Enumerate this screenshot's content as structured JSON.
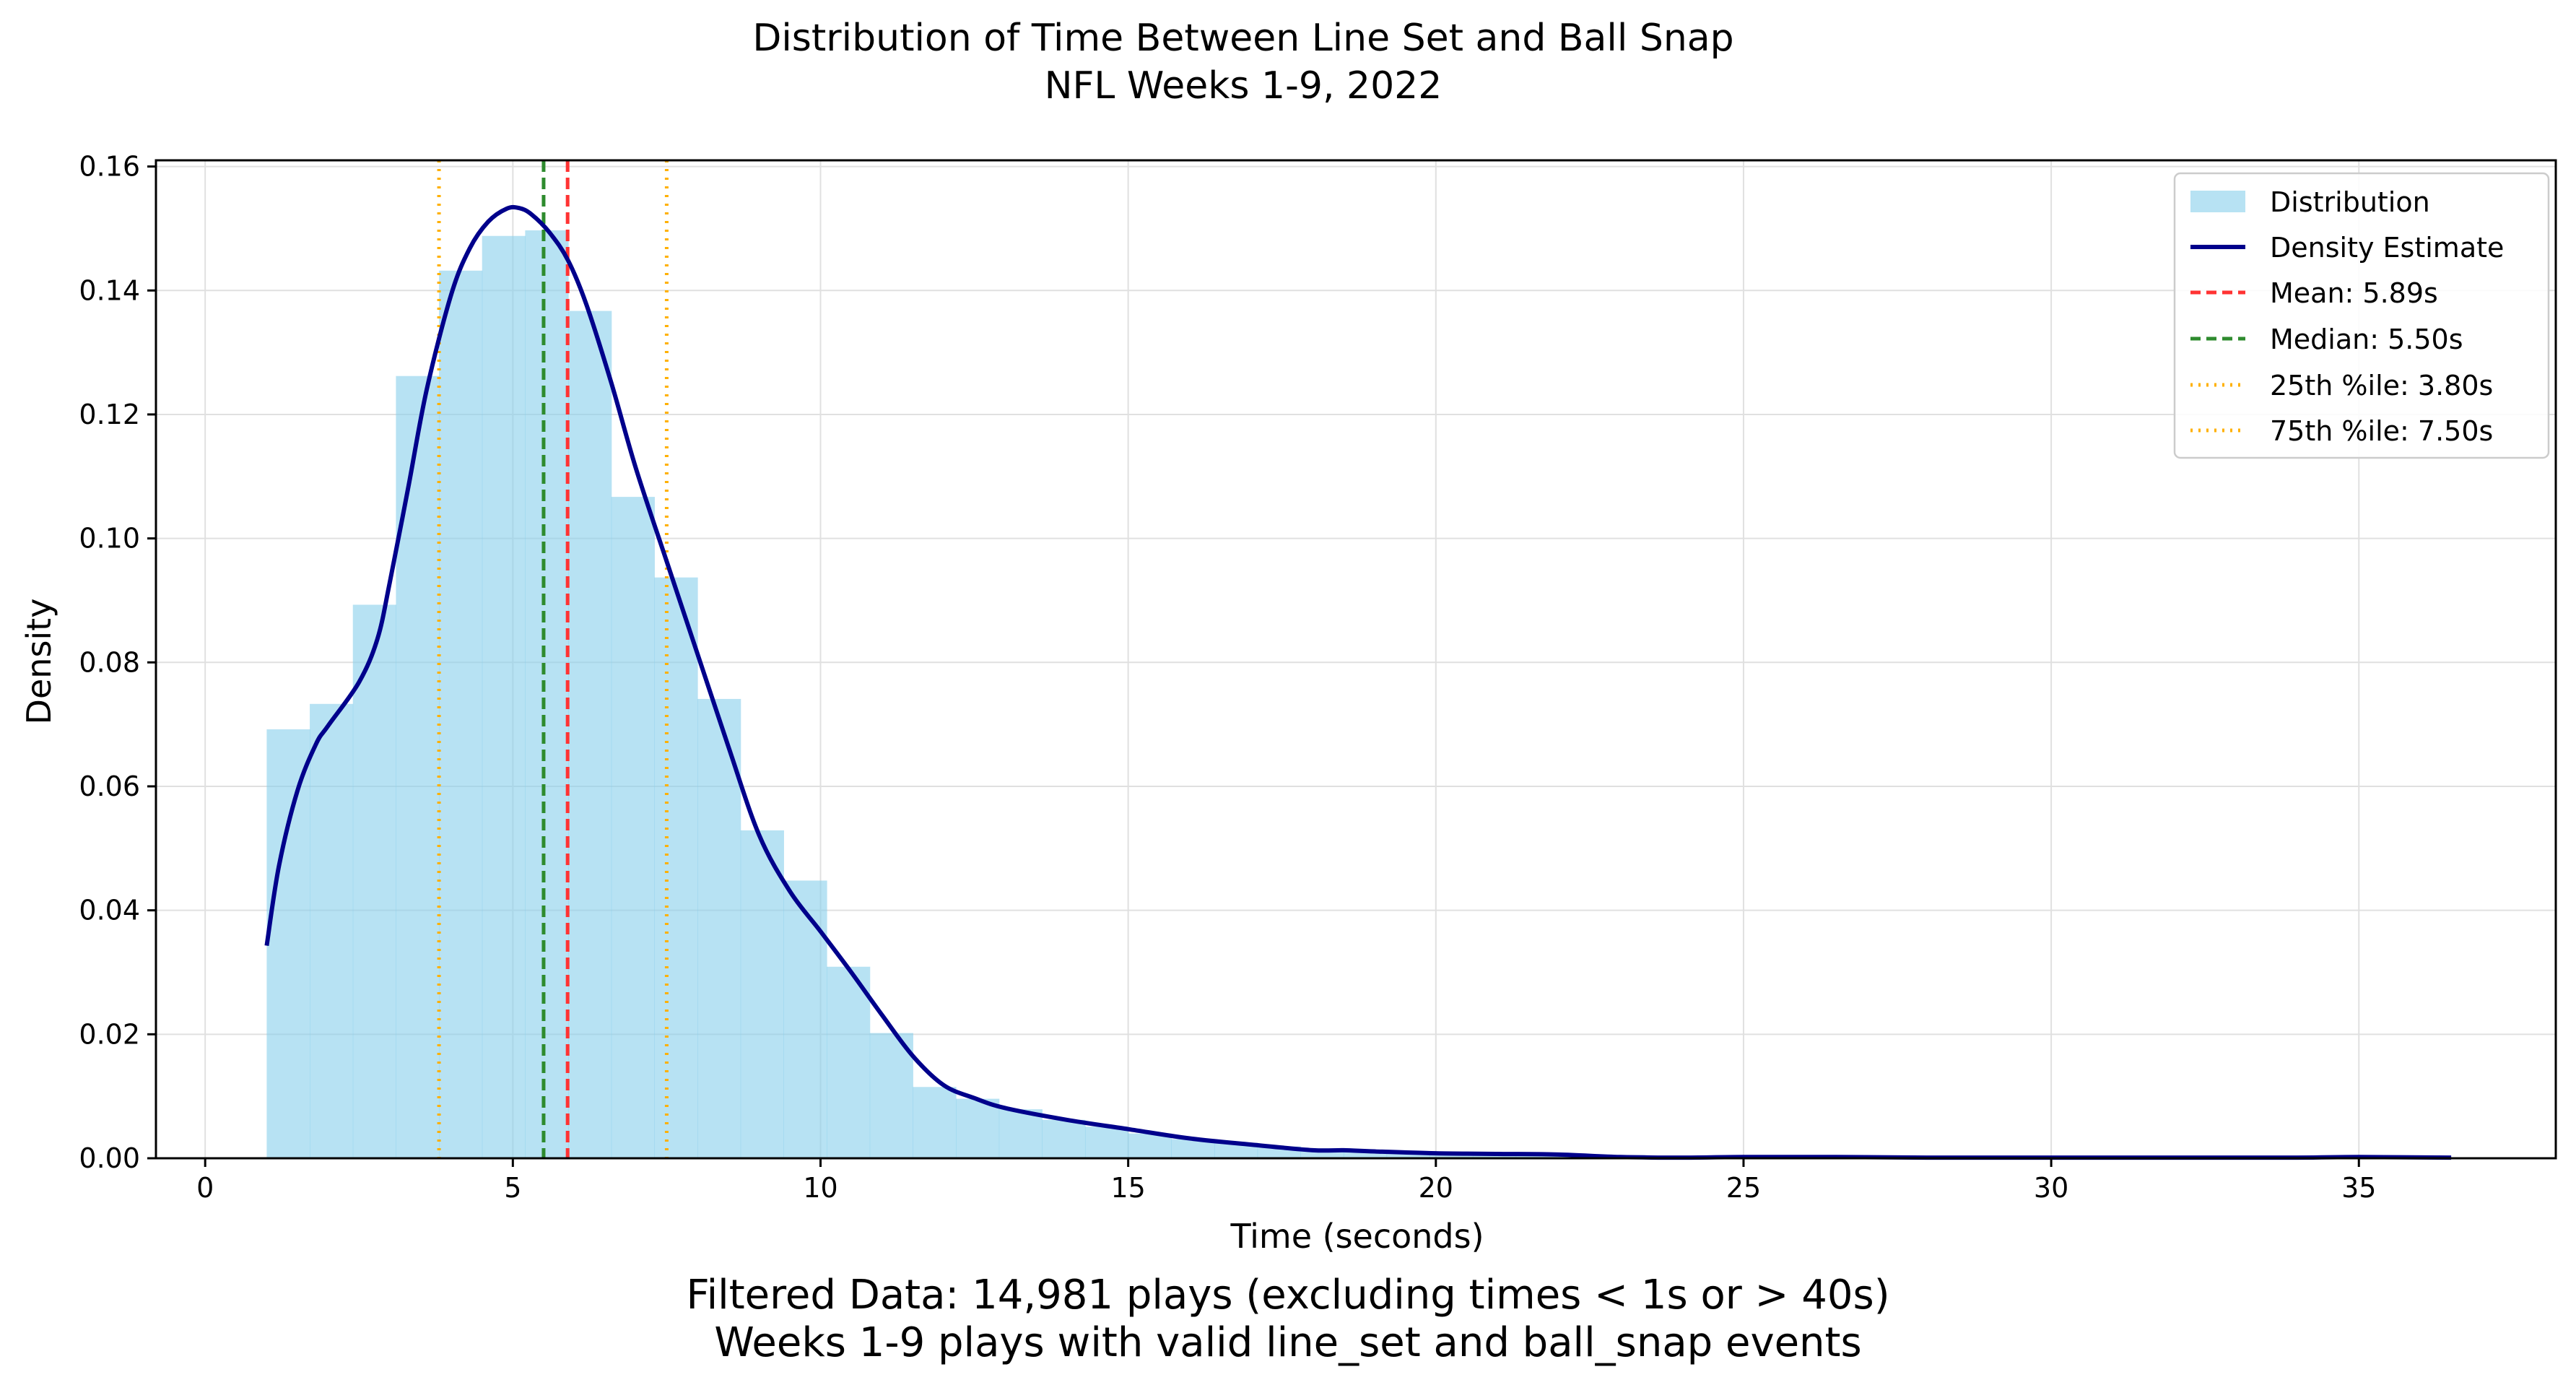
{
  "chart_data": {
    "type": "histogram",
    "title": "Distribution of Time Between Line Set and Ball Snap",
    "subtitle": "NFL Weeks 1-9, 2022",
    "xlabel": "Time (seconds)",
    "ylabel": "Density",
    "xlim": [
      -0.8,
      38.2
    ],
    "ylim": [
      0,
      0.161
    ],
    "x_ticks": [
      0,
      5,
      10,
      15,
      20,
      25,
      30,
      35
    ],
    "x_tick_labels": [
      "0",
      "5",
      "10",
      "15",
      "20",
      "25",
      "30",
      "35"
    ],
    "y_ticks": [
      0,
      0.02,
      0.04,
      0.06,
      0.08,
      0.1,
      0.12,
      0.14,
      0.16
    ],
    "y_tick_labels": [
      "0.00",
      "0.02",
      "0.04",
      "0.06",
      "0.08",
      "0.10",
      "0.12",
      "0.14",
      "0.16"
    ],
    "grid": true,
    "legend_position": "top-right",
    "histogram": {
      "name": "Distribution",
      "color": "#87ceeb",
      "alpha": 0.6,
      "bin_edges": [
        1.0,
        1.7,
        2.4,
        3.1,
        3.8,
        4.5,
        5.2,
        5.9,
        6.6,
        7.3,
        8.0,
        8.7,
        9.4,
        10.1,
        10.8,
        11.5,
        12.2,
        12.9,
        13.6,
        14.3,
        15.0,
        15.7,
        16.4,
        17.1,
        17.8,
        18.5,
        19.2,
        19.9,
        20.6,
        21.3,
        22.0,
        22.7,
        23.4,
        24.1,
        24.8,
        25.5,
        26.2,
        26.9,
        27.6,
        28.3,
        29.0,
        29.7,
        30.4,
        31.1,
        31.8,
        32.5,
        33.2,
        33.9,
        34.6,
        35.3,
        36.0,
        36.7
      ],
      "densities": [
        0.0692,
        0.0733,
        0.0893,
        0.1262,
        0.1432,
        0.1488,
        0.1497,
        0.1367,
        0.1067,
        0.0937,
        0.0741,
        0.0529,
        0.0448,
        0.0309,
        0.0202,
        0.0115,
        0.0096,
        0.0079,
        0.0062,
        0.0051,
        0.004,
        0.0031,
        0.0025,
        0.0019,
        0.0016,
        0.0013,
        0.001,
        0.0009,
        0.0008,
        0.0007,
        0.0006,
        0.0005,
        0.0004,
        0.0003,
        0.0003,
        0.0003,
        0.0002,
        0.0002,
        0.0002,
        0.0002,
        0.0001,
        0.0001,
        0.0001,
        0.0001,
        0.0001,
        0.0001,
        0.0001,
        0.0001,
        0.0001,
        0.0001,
        0.0001
      ]
    },
    "series": [
      {
        "name": "Density Estimate",
        "type": "line",
        "color": "#00008b",
        "x": [
          1.0,
          1.2,
          1.5,
          1.8,
          2.0,
          2.5,
          2.8,
          3.0,
          3.3,
          3.6,
          4.0,
          4.3,
          4.6,
          4.9,
          5.1,
          5.3,
          5.6,
          5.9,
          6.2,
          6.6,
          7.0,
          7.5,
          8.0,
          8.5,
          9.0,
          9.5,
          10.0,
          10.5,
          11.0,
          11.5,
          12.0,
          12.5,
          13.0,
          14.0,
          15.0,
          16.0,
          17.0,
          18.0,
          18.5,
          19.0,
          20.0,
          21.0,
          22.0,
          23.0,
          24.0,
          25.0,
          26.5,
          28.0,
          30.0,
          32.0,
          34.0,
          35.0,
          36.5
        ],
        "y": [
          0.0343,
          0.0472,
          0.0593,
          0.0668,
          0.0698,
          0.0768,
          0.0838,
          0.0929,
          0.1082,
          0.124,
          0.1394,
          0.1468,
          0.1511,
          0.1532,
          0.1533,
          0.1523,
          0.1493,
          0.1448,
          0.1376,
          0.1251,
          0.1113,
          0.0963,
          0.0814,
          0.0665,
          0.0522,
          0.0431,
          0.0366,
          0.03,
          0.0231,
          0.0165,
          0.0118,
          0.0097,
          0.0081,
          0.0062,
          0.0047,
          0.0032,
          0.0022,
          0.0013,
          0.0013,
          0.0011,
          0.0008,
          0.0007,
          0.0006,
          0.0002,
          0.0001,
          0.0002,
          0.0002,
          0.0001,
          0.0001,
          0.0001,
          0.0001,
          0.0002,
          0.0001
        ]
      }
    ],
    "reference_lines": [
      {
        "name": "Mean: 5.89s",
        "x": 5.89,
        "color": "#ff3333",
        "style": "dashed"
      },
      {
        "name": "Median: 5.50s",
        "x": 5.5,
        "color": "#2e8b2e",
        "style": "dashed"
      },
      {
        "name": "25th %ile: 3.80s",
        "x": 3.8,
        "color": "#ffb000",
        "style": "dotted"
      },
      {
        "name": "75th %ile: 7.50s",
        "x": 7.5,
        "color": "#ffb000",
        "style": "dotted"
      }
    ],
    "legend_entries": [
      "Distribution",
      "Density Estimate",
      "Mean: 5.89s",
      "Median: 5.50s",
      "25th %ile: 3.80s",
      "75th %ile: 7.50s"
    ],
    "footnote": [
      "Filtered Data: 14,981 plays (excluding times < 1s or > 40s)",
      "Weeks 1-9 plays with valid line_set and ball_snap events"
    ]
  }
}
